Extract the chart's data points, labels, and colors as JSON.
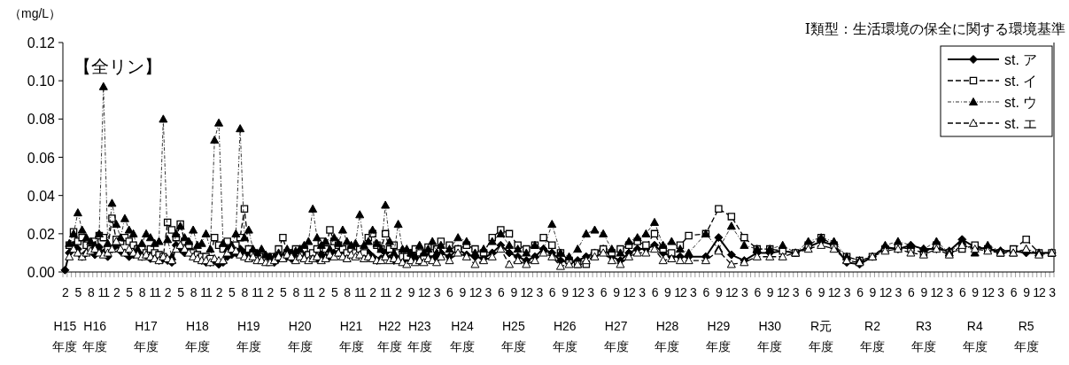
{
  "chart_data": [
    {
      "type": "line",
      "title": "【全リン】",
      "ylabel": "（mg/L）",
      "annotations": [
        "Ⅰ類型：生活環境の保全に関する環境基準"
      ],
      "legend": "top right",
      "ylim": [
        0,
        0.12
      ],
      "yticks": [
        {
          "value": 0,
          "label": "0.00"
        },
        {
          "value": 0.02,
          "label": "0.02"
        },
        {
          "value": 0.04,
          "label": "0.04"
        },
        {
          "value": 0.06,
          "label": "0.06"
        },
        {
          "value": 0.08,
          "label": "0.08"
        },
        {
          "value": 0.1,
          "label": "0.10"
        },
        {
          "value": 0.12,
          "label": "0.12"
        }
      ],
      "categories": [
        "2",
        null,
        null,
        "5",
        null,
        null,
        "8",
        null,
        null,
        "11",
        null,
        null,
        "2",
        null,
        null,
        "5",
        null,
        null,
        "8",
        null,
        null,
        "11",
        null,
        null,
        "2",
        null,
        null,
        "5",
        null,
        null,
        "8",
        null,
        null,
        "11",
        null,
        null,
        "2",
        null,
        null,
        "5",
        null,
        null,
        "8",
        null,
        null,
        "11",
        null,
        null,
        "2",
        null,
        null,
        "5",
        null,
        null,
        "8",
        null,
        null,
        "11",
        null,
        null,
        "2",
        null,
        null,
        "5",
        null,
        null,
        "8",
        null,
        null,
        "11",
        null,
        null,
        "2",
        null,
        null,
        "11",
        null,
        null,
        "2",
        null,
        null,
        "9",
        null,
        null,
        "12",
        null,
        null,
        "3",
        null,
        null,
        "6",
        null,
        null,
        "9",
        null,
        null,
        "12",
        null,
        null,
        "3",
        null,
        null,
        "6",
        null,
        null,
        "9",
        null,
        null,
        "12",
        null,
        null,
        "3",
        null,
        null,
        "6",
        null,
        null,
        "9",
        null,
        null,
        "12",
        null,
        null,
        "3",
        null,
        null,
        "6",
        null,
        null,
        "9",
        null,
        null,
        "12",
        null,
        null,
        "3",
        null,
        null,
        "6",
        null,
        null,
        "9",
        null,
        null,
        "12",
        null,
        null,
        "3",
        null,
        null,
        "6",
        null,
        null,
        "9",
        null,
        null,
        "12",
        null,
        null,
        "3",
        null,
        null,
        "6",
        null,
        null,
        "9",
        null,
        null,
        "12",
        null,
        null,
        "3",
        null,
        null,
        "6",
        null,
        null,
        "9",
        null,
        null,
        "12",
        null,
        null,
        "3",
        null,
        null,
        "6",
        null,
        null,
        "9",
        null,
        null,
        "12",
        null,
        null,
        "3",
        null,
        null,
        "6",
        null,
        null,
        "9",
        null,
        null,
        "12",
        null,
        null,
        "3",
        null,
        null,
        "6",
        null,
        null,
        "9",
        null,
        null,
        "12",
        null,
        null,
        "3",
        null,
        null,
        "6",
        null,
        null,
        "9",
        null,
        null,
        "12",
        null,
        null,
        "3"
      ],
      "series": [
        {
          "name": "st. ア",
          "color": "#000000",
          "marker": "diamond",
          "line_style": "solid",
          "values": [
            0.001,
            0.01,
            0.014,
            0.012,
            0.008,
            0.01,
            0.012,
            0.009,
            0.013,
            0.01,
            0.008,
            0.012,
            0.014,
            0.011,
            0.01,
            0.008,
            0.009,
            0.01,
            0.008,
            0.009,
            0.007,
            0.008,
            0.006,
            0.007,
            0.006,
            0.005,
            0.014,
            0.012,
            0.01,
            0.012,
            0.01,
            0.008,
            0.006,
            0.005,
            0.005,
            0.006,
            0.004,
            0.005,
            0.008,
            0.009,
            0.01,
            0.012,
            0.01,
            0.009,
            0.008,
            0.008,
            0.007,
            0.006,
            0.006,
            0.005,
            0.007,
            0.008,
            0.008,
            0.007,
            0.01,
            0.009,
            0.008,
            0.007,
            0.008,
            0.007,
            0.009,
            0.008,
            0.008,
            0.01,
            0.01,
            0.009,
            0.008,
            0.01,
            0.009,
            0.011,
            0.008,
            0.01,
            0.008,
            0.006,
            0.007,
            0.01,
            0.007,
            0.006,
            0.008,
            0.006,
            0.006,
            0.008,
            0.007,
            0.006,
            0.008,
            0.008,
            0.009,
            0.007,
            0.01,
            null,
            0.008,
            null,
            0.012,
            null,
            0.009,
            null,
            0.008,
            null,
            0.007,
            null,
            0.01,
            null,
            0.014,
            null,
            0.01,
            null,
            0.008,
            null,
            0.006,
            null,
            0.008,
            null,
            0.012,
            null,
            0.01,
            null,
            0.006,
            null,
            0.005,
            null,
            0.006,
            null,
            0.008,
            null,
            0.01,
            null,
            0.012,
            null,
            0.008,
            null,
            0.006,
            null,
            0.01,
            null,
            0.012,
            null,
            0.012,
            null,
            0.014,
            null,
            0.01,
            null,
            0.008,
            null,
            0.008,
            null,
            0.008,
            null,
            null,
            null,
            0.008,
            null,
            null,
            0.018,
            null,
            null,
            0.009,
            null,
            null,
            0.006,
            null,
            null,
            0.01,
            null,
            null,
            0.01,
            null,
            null,
            0.011,
            null,
            null,
            0.01,
            null,
            null,
            0.013,
            null,
            null,
            0.016,
            null,
            null,
            0.014,
            null,
            null,
            0.005,
            null,
            null,
            0.004,
            null,
            null,
            0.008,
            null,
            null,
            0.013,
            null,
            null,
            0.012,
            null,
            null,
            0.014,
            null,
            null,
            0.012,
            null,
            null,
            0.012,
            null,
            null,
            0.011,
            null,
            null,
            0.017,
            null,
            null,
            0.013,
            null,
            null,
            0.012,
            null,
            null,
            0.011,
            null,
            null,
            0.011,
            null,
            null,
            0.01,
            null,
            null,
            0.01,
            null,
            null,
            0.01
          ]
        },
        {
          "name": "st. イ",
          "color": "#000000",
          "marker": "square",
          "line_style": "dashed",
          "values": [
            null,
            0.014,
            0.021,
            0.016,
            0.018,
            0.014,
            0.012,
            0.016,
            0.019,
            0.018,
            0.012,
            0.028,
            0.017,
            0.016,
            0.018,
            0.016,
            0.014,
            0.012,
            0.012,
            0.01,
            0.012,
            0.01,
            0.009,
            0.008,
            0.026,
            0.022,
            0.018,
            0.025,
            0.016,
            0.014,
            0.01,
            0.009,
            0.008,
            0.008,
            0.007,
            0.018,
            0.014,
            0.012,
            0.016,
            0.012,
            0.014,
            0.018,
            0.033,
            0.012,
            0.01,
            0.009,
            0.008,
            0.008,
            0.007,
            0.008,
            0.012,
            0.018,
            0.01,
            0.008,
            0.012,
            0.01,
            0.012,
            0.009,
            0.01,
            0.012,
            0.016,
            0.012,
            0.022,
            0.016,
            0.014,
            0.012,
            0.01,
            0.012,
            0.01,
            0.012,
            0.01,
            0.018,
            0.02,
            0.014,
            0.012,
            0.02,
            0.012,
            0.014,
            0.01,
            0.008,
            0.008,
            0.01,
            0.012,
            0.01,
            0.008,
            0.013,
            0.01,
            0.012,
            0.016,
            null,
            0.014,
            null,
            0.012,
            null,
            0.014,
            null,
            0.012,
            null,
            0.01,
            null,
            0.018,
            null,
            0.022,
            null,
            0.02,
            null,
            0.014,
            null,
            0.012,
            null,
            0.014,
            null,
            0.018,
            null,
            0.014,
            null,
            0.01,
            null,
            0.006,
            null,
            0.004,
            null,
            0.004,
            null,
            0.01,
            null,
            0.012,
            null,
            0.01,
            null,
            0.012,
            null,
            0.014,
            null,
            0.016,
            null,
            0.014,
            null,
            0.02,
            null,
            0.012,
            null,
            0.01,
            null,
            0.014,
            null,
            0.019,
            null,
            null,
            null,
            0.02,
            null,
            null,
            0.033,
            null,
            null,
            0.029,
            null,
            null,
            0.018,
            null,
            null,
            0.012,
            null,
            null,
            0.012,
            null,
            null,
            0.011,
            null,
            null,
            0.01,
            null,
            null,
            0.014,
            null,
            null,
            0.018,
            null,
            null,
            0.014,
            null,
            null,
            0.008,
            null,
            null,
            0.006,
            null,
            null,
            0.008,
            null,
            null,
            0.012,
            null,
            null,
            0.013,
            null,
            null,
            0.012,
            null,
            null,
            0.01,
            null,
            null,
            0.014,
            null,
            null,
            0.01,
            null,
            null,
            0.012,
            null,
            null,
            0.014,
            null,
            null,
            0.012,
            null,
            null,
            0.01,
            null,
            null,
            0.012,
            null,
            null,
            0.017,
            null,
            null,
            0.01,
            null,
            null,
            0.01
          ]
        },
        {
          "name": "st. ウ",
          "color": "#000000",
          "marker": "triangle",
          "line_style": "dotted",
          "values": [
            null,
            0.015,
            0.02,
            0.031,
            0.022,
            0.018,
            0.016,
            0.014,
            0.02,
            0.097,
            0.015,
            0.036,
            0.025,
            0.018,
            0.028,
            0.022,
            0.02,
            0.012,
            0.015,
            0.02,
            0.018,
            0.015,
            0.016,
            0.08,
            0.017,
            0.008,
            0.02,
            0.024,
            0.018,
            0.016,
            0.022,
            0.014,
            0.015,
            0.02,
            0.012,
            0.069,
            0.078,
            0.015,
            0.012,
            0.014,
            0.02,
            0.075,
            0.018,
            0.022,
            0.012,
            0.01,
            0.012,
            0.009,
            0.008,
            0.008,
            0.01,
            0.008,
            0.012,
            0.01,
            0.011,
            0.012,
            0.014,
            0.016,
            0.033,
            0.018,
            0.014,
            0.016,
            0.012,
            0.018,
            0.015,
            0.022,
            0.016,
            0.014,
            0.015,
            0.03,
            0.014,
            0.016,
            0.022,
            0.015,
            0.012,
            0.035,
            0.016,
            0.01,
            0.025,
            0.012,
            0.012,
            0.01,
            0.008,
            0.014,
            0.01,
            0.012,
            0.016,
            0.01,
            0.014,
            null,
            0.012,
            null,
            0.018,
            null,
            0.016,
            null,
            0.01,
            null,
            0.012,
            null,
            0.016,
            null,
            0.02,
            null,
            0.014,
            null,
            0.012,
            null,
            0.01,
            null,
            0.014,
            null,
            0.012,
            null,
            0.025,
            null,
            0.01,
            null,
            0.008,
            null,
            0.012,
            null,
            0.02,
            null,
            0.022,
            null,
            0.02,
            null,
            0.012,
            null,
            0.01,
            null,
            0.016,
            null,
            0.018,
            null,
            0.02,
            null,
            0.026,
            null,
            0.014,
            null,
            0.016,
            null,
            0.012,
            null,
            0.01,
            null,
            null,
            null,
            0.02,
            null,
            null,
            0.012,
            null,
            null,
            0.024,
            null,
            null,
            0.014,
            null,
            null,
            0.012,
            null,
            null,
            0.012,
            null,
            null,
            0.014,
            null,
            null,
            0.01,
            null,
            null,
            0.016,
            null,
            null,
            0.018,
            null,
            null,
            0.016,
            null,
            null,
            0.008,
            null,
            null,
            0.006,
            null,
            null,
            0.008,
            null,
            null,
            0.014,
            null,
            null,
            0.016,
            null,
            null,
            0.014,
            null,
            null,
            0.012,
            null,
            null,
            0.016,
            null,
            null,
            0.01,
            null,
            null,
            0.016,
            null,
            null,
            0.01,
            null,
            null,
            0.014,
            null,
            null,
            0.011,
            null,
            null,
            0.01,
            null,
            null,
            0.012,
            null,
            null,
            0.01,
            null,
            null,
            0.01
          ]
        },
        {
          "name": "st. エ",
          "color": "#000000",
          "marker": "triangle",
          "line_style": "dashed",
          "values": [
            null,
            0.008,
            0.012,
            0.01,
            0.008,
            0.01,
            0.011,
            0.012,
            0.01,
            0.009,
            0.01,
            0.012,
            0.016,
            0.012,
            0.01,
            0.012,
            0.01,
            0.009,
            0.008,
            0.009,
            0.008,
            0.007,
            0.006,
            0.008,
            0.007,
            0.006,
            0.012,
            0.014,
            0.012,
            0.01,
            0.008,
            0.007,
            0.006,
            0.006,
            0.005,
            0.007,
            0.006,
            0.006,
            0.01,
            0.012,
            0.011,
            0.009,
            0.008,
            0.007,
            0.008,
            0.006,
            0.006,
            0.005,
            0.005,
            0.006,
            0.008,
            0.007,
            0.009,
            0.008,
            0.006,
            0.008,
            0.007,
            0.006,
            0.007,
            0.008,
            0.006,
            0.007,
            0.009,
            0.008,
            0.01,
            0.008,
            0.007,
            0.009,
            0.008,
            0.009,
            0.007,
            0.008,
            0.007,
            0.006,
            0.006,
            0.008,
            0.006,
            0.007,
            0.006,
            0.005,
            0.004,
            0.006,
            0.005,
            0.006,
            0.005,
            0.007,
            0.006,
            0.005,
            0.008,
            null,
            0.006,
            null,
            0.01,
            null,
            0.008,
            null,
            0.004,
            null,
            0.006,
            null,
            0.008,
            null,
            0.012,
            null,
            0.004,
            null,
            0.006,
            null,
            0.004,
            null,
            0.006,
            null,
            0.01,
            null,
            0.008,
            null,
            0.003,
            null,
            0.004,
            null,
            0.004,
            null,
            0.006,
            null,
            0.008,
            null,
            0.01,
            null,
            0.006,
            null,
            0.004,
            null,
            0.008,
            null,
            0.01,
            null,
            0.01,
            null,
            0.012,
            null,
            0.006,
            null,
            0.007,
            null,
            0.006,
            null,
            0.006,
            null,
            null,
            null,
            0.006,
            null,
            null,
            0.011,
            null,
            null,
            0.004,
            null,
            null,
            0.005,
            null,
            null,
            0.008,
            null,
            null,
            0.008,
            null,
            null,
            0.008,
            null,
            null,
            0.01,
            null,
            null,
            0.012,
            null,
            null,
            0.014,
            null,
            null,
            0.012,
            null,
            null,
            0.006,
            null,
            null,
            0.005,
            null,
            null,
            0.008,
            null,
            null,
            0.011,
            null,
            null,
            0.012,
            null,
            null,
            0.01,
            null,
            null,
            0.009,
            null,
            null,
            0.012,
            null,
            null,
            0.009,
            null,
            null,
            0.014,
            null,
            null,
            0.012,
            null,
            null,
            0.011,
            null,
            null,
            0.01,
            null,
            null,
            0.01,
            null,
            null,
            0.012,
            null,
            null,
            0.009,
            null,
            null,
            0.01
          ]
        }
      ]
    },
    {
      "type": "other",
      "categories": [
        "H15年度",
        null,
        null,
        null,
        null,
        null,
        null,
        "H16年度",
        null,
        null,
        null,
        null,
        null,
        null,
        null,
        null,
        null,
        null,
        null,
        "H17年度",
        null,
        null,
        null,
        null,
        null,
        null,
        null,
        null,
        null,
        null,
        null,
        "H18年度",
        null,
        null,
        null,
        null,
        null,
        null,
        null,
        null,
        null,
        null,
        null,
        "H19年度",
        null,
        null,
        null,
        null,
        null,
        null,
        null,
        null,
        null,
        null,
        null,
        "H20年度",
        null,
        null,
        null,
        null,
        null,
        null,
        null,
        null,
        null,
        null,
        null,
        "H21年度",
        null,
        null,
        null,
        null,
        null,
        null,
        null,
        null,
        "H22年度",
        null,
        null,
        null,
        null,
        null,
        null,
        "H23年度",
        null,
        null,
        null,
        null,
        null,
        null,
        null,
        null,
        null,
        "H24年度",
        null,
        null,
        null,
        null,
        null,
        null,
        null,
        null,
        null,
        null,
        null,
        "H25年度",
        null,
        null,
        null,
        null,
        null,
        null,
        null,
        null,
        null,
        null,
        null,
        "H26年度",
        null,
        null,
        null,
        null,
        null,
        null,
        null,
        null,
        null,
        null,
        null,
        "H27年度",
        null,
        null,
        null,
        null,
        null,
        null,
        null,
        null,
        null,
        null,
        null,
        "H28年度",
        null,
        null,
        null,
        null,
        null,
        null,
        null,
        null,
        null,
        null,
        null,
        "H29年度",
        null,
        null,
        null,
        null,
        null,
        null,
        null,
        null,
        null,
        null,
        null,
        "H30年度",
        null,
        null,
        null,
        null,
        null,
        null,
        null,
        null,
        null,
        null,
        null,
        "R元年度",
        null,
        null,
        null,
        null,
        null,
        null,
        null,
        null,
        null,
        null,
        null,
        "R2年度",
        null,
        null,
        null,
        null,
        null,
        null,
        null,
        null,
        null,
        null,
        null,
        "R3年度",
        null,
        null,
        null,
        null,
        null,
        null,
        null,
        null,
        null,
        null,
        null,
        "R4年度",
        null,
        null,
        null,
        null,
        null,
        null,
        null,
        null,
        null,
        null,
        null,
        "R5年度",
        null,
        null,
        null,
        null,
        null,
        null
      ]
    }
  ]
}
